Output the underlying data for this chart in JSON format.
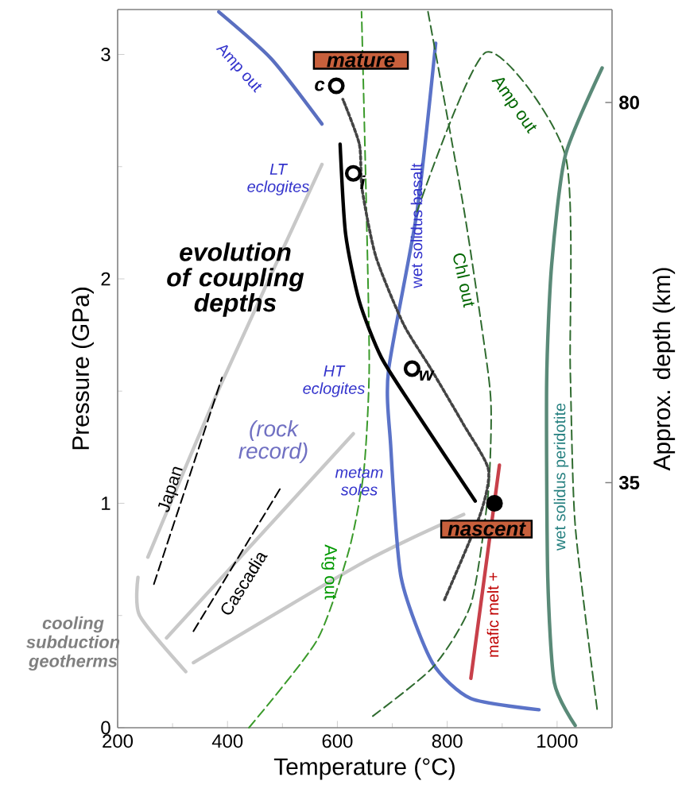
{
  "chart_data": {
    "type": "line",
    "xlabel": "Temperature (°C)",
    "ylabel": "Pressure (GPa)",
    "y2label": "Approx. depth (km)",
    "xlim": [
      200,
      1100
    ],
    "xticks": [
      200,
      400,
      600,
      800,
      1000
    ],
    "ylim": [
      0,
      3.2
    ],
    "yticks": [
      0,
      1,
      2,
      3
    ],
    "y2lim": [
      6,
      91
    ],
    "y2ticks": [
      35,
      80
    ],
    "grid": false,
    "series": [
      {
        "color": "#c8c8c8",
        "line_style": "solid",
        "x": [
          255,
          390,
          572
        ],
        "values": [
          0.76,
          1.54,
          2.51
        ]
      },
      {
        "color": "#c8c8c8",
        "line_style": "solid",
        "x": [
          289,
          629
        ],
        "values": [
          0.4,
          1.31
        ]
      },
      {
        "color": "#c8c8c8",
        "line_style": "solid",
        "x": [
          338,
          650,
          830
        ],
        "values": [
          0.29,
          0.74,
          0.95
        ]
      },
      {
        "color": "#c8c8c8",
        "line_style": "solid",
        "x": [
          324,
          240,
          237
        ],
        "values": [
          0.25,
          0.5,
          0.67
        ]
      },
      {
        "color": "#000000",
        "line_style": "dashed",
        "x": [
          266,
          390
        ],
        "values": [
          0.64,
          1.56
        ]
      },
      {
        "color": "#000000",
        "line_style": "dashed",
        "x": [
          338,
          497
        ],
        "values": [
          0.43,
          1.07
        ]
      },
      {
        "color": "#5a6fc0",
        "line_style": "solid",
        "x": [
          384,
          480,
          572
        ],
        "values": [
          3.19,
          2.98,
          2.69
        ]
      },
      {
        "color": "#5b73c8",
        "line_style": "solid",
        "x": [
          779,
          745,
          693,
          697,
          716,
          773,
          843,
          967
        ],
        "values": [
          3.05,
          2.3,
          1.59,
          1.26,
          0.67,
          0.29,
          0.13,
          0.08
        ]
      },
      {
        "color": "#2f6b2f",
        "line_style": "dashed",
        "x": [
          765,
          831,
          874,
          880,
          874,
          843,
          774,
          658
        ],
        "values": [
          3.19,
          2.3,
          1.59,
          1.38,
          1.03,
          0.55,
          0.27,
          0.04
        ]
      },
      {
        "color": "#2f6b2f",
        "line_style": "dashed",
        "x": [
          745,
          871,
          1015,
          1024,
          1033,
          1073
        ],
        "values": [
          2.3,
          3.01,
          2.55,
          1.59,
          0.9,
          0.08
        ]
      },
      {
        "color": "#5a8a78",
        "line_style": "solid",
        "x": [
          1082,
          1015,
          990,
          981,
          983,
          995,
          1033
        ],
        "values": [
          2.94,
          2.55,
          2.06,
          1.54,
          0.67,
          0.2,
          0.01
        ]
      },
      {
        "color": "#3a9a2a",
        "line_style": "dashed",
        "x": [
          439,
          563,
          621,
          648,
          658,
          652,
          644
        ],
        "values": [
          0.0,
          0.39,
          0.79,
          1.14,
          1.61,
          2.4,
          3.19
        ]
      },
      {
        "color": "#c8404a",
        "line_style": "solid",
        "x": [
          895,
          843
        ],
        "values": [
          1.17,
          0.22
        ]
      },
      {
        "color": "#444444",
        "line_style": "dotted",
        "x": [
          795,
          860,
          875,
          830,
          770,
          720,
          670,
          645,
          640,
          610
        ],
        "values": [
          0.57,
          0.95,
          1.15,
          1.35,
          1.6,
          1.8,
          2.1,
          2.4,
          2.6,
          2.8
        ]
      },
      {
        "color": "#000000",
        "line_style": "solid",
        "x": [
          851,
          745,
          680,
          640,
          615,
          605
        ],
        "values": [
          1.01,
          1.4,
          1.65,
          1.9,
          2.2,
          2.6
        ]
      },
      {
        "type": "scatter",
        "name": "c",
        "color": "#ffffff",
        "marker": "circle",
        "x": [
          598
        ],
        "values": [
          2.86
        ]
      },
      {
        "type": "scatter",
        "name": "i",
        "color": "#ffffff",
        "marker": "circle",
        "x": [
          629
        ],
        "values": [
          2.47
        ]
      },
      {
        "type": "scatter",
        "name": "w",
        "color": "#ffffff",
        "marker": "circle",
        "x": [
          736
        ],
        "values": [
          1.6
        ]
      },
      {
        "type": "scatter",
        "color": "#000000",
        "marker": "circle",
        "x": [
          886
        ],
        "values": [
          1.0
        ]
      }
    ],
    "annotations": [
      "Amp out",
      "LT eclogites",
      "evolution of coupling depths",
      "HT eclogites",
      "(rock record)",
      "Japan",
      "Cascadia",
      "cooling subduction geotherms",
      "metam soles",
      "wet solidus basalt",
      "Chl out",
      "Amp out",
      "wet solidus peridotite",
      "Atg out",
      "mafic melt +",
      "mature",
      "nascent"
    ]
  }
}
